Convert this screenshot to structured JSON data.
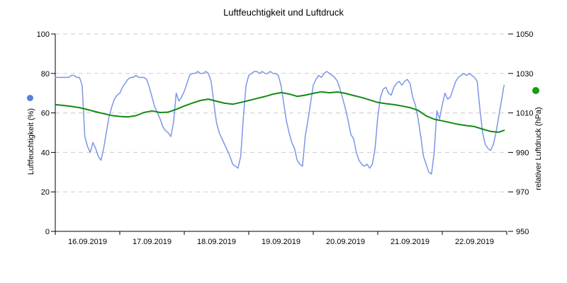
{
  "title": "Luftfeuchtigkeit und Luftdruck",
  "colors": {
    "humidity_line": "#7b96e8",
    "humidity_marker": "#5b7de1",
    "pressure_line": "#128a12",
    "pressure_marker": "#12a012",
    "grid": "#cccccc",
    "axis": "#000000",
    "background": "#ffffff"
  },
  "chart_data": {
    "type": "line",
    "title": "Luftfeuchtigkeit und Luftdruck",
    "grid": "horizontal-dashed",
    "legend": "colored dots next to each axis title",
    "x_axis": {
      "tick_labels": [
        "16.09.2019",
        "17.09.2019",
        "18.09.2019",
        "19.09.2019",
        "20.09.2019",
        "21.09.2019",
        "22.09.2019"
      ],
      "start": "16.09.2019 00:00",
      "days_shown": 7,
      "data_end_hour": 167
    },
    "y_left": {
      "label": "Luftfeuchtigkeit (%)",
      "min": 0,
      "max": 100,
      "ticks": [
        0,
        20,
        40,
        60,
        80,
        100
      ]
    },
    "y_right": {
      "label": "relativer Luftdruck (hPa)",
      "min": 950,
      "max": 1050,
      "ticks": [
        950,
        970,
        990,
        1010,
        1030,
        1050
      ]
    },
    "series": [
      {
        "name": "Luftfeuchtigkeit",
        "unit": "%",
        "axis": "left",
        "color": "#7b96e8",
        "step_hours": 1,
        "values": [
          78,
          78,
          78,
          78,
          78,
          78,
          79,
          79,
          78,
          78,
          74,
          48,
          43,
          40,
          45,
          42,
          38,
          36,
          42,
          50,
          58,
          63,
          67,
          69,
          70,
          73,
          75,
          77,
          78,
          78,
          79,
          78,
          78,
          78,
          77,
          73,
          68,
          63,
          60,
          57,
          53,
          51,
          50,
          48,
          55,
          70,
          66,
          68,
          71,
          75,
          79,
          80,
          80,
          81,
          80,
          80,
          81,
          80,
          76,
          65,
          55,
          50,
          47,
          44,
          41,
          38,
          34,
          33,
          32,
          38,
          58,
          74,
          79,
          80,
          81,
          81,
          80,
          81,
          80,
          80,
          81,
          80,
          80,
          79,
          74,
          65,
          56,
          50,
          45,
          42,
          36,
          34,
          33,
          48,
          56,
          65,
          74,
          77,
          79,
          78,
          80,
          81,
          80,
          79,
          78,
          76,
          72,
          67,
          62,
          56,
          49,
          47,
          40,
          36,
          34,
          33,
          34,
          32,
          34,
          42,
          58,
          68,
          72,
          73,
          70,
          69,
          73,
          75,
          76,
          74,
          76,
          77,
          75,
          68,
          64,
          57,
          48,
          38,
          34,
          30,
          29,
          40,
          61,
          57,
          64,
          70,
          67,
          68,
          72,
          76,
          78,
          79,
          80,
          79,
          80,
          79,
          78,
          76,
          62,
          50,
          44,
          42,
          41,
          44,
          50,
          58,
          66,
          74
        ]
      },
      {
        "name": "relativer Luftdruck",
        "unit": "hPa",
        "axis": "right",
        "color": "#128a12",
        "step_hours": 3,
        "values": [
          1014.2,
          1013.8,
          1013.3,
          1012.7,
          1011.7,
          1010.6,
          1009.6,
          1008.7,
          1008.2,
          1008.0,
          1008.6,
          1010.2,
          1011.0,
          1010.2,
          1010.4,
          1011.8,
          1013.5,
          1015.0,
          1016.3,
          1017.0,
          1015.9,
          1014.9,
          1014.4,
          1015.3,
          1016.3,
          1017.3,
          1018.3,
          1019.5,
          1020.3,
          1019.6,
          1018.4,
          1019.0,
          1019.9,
          1020.7,
          1020.2,
          1020.6,
          1019.9,
          1018.8,
          1017.8,
          1016.6,
          1015.3,
          1014.7,
          1014.2,
          1013.5,
          1012.7,
          1011.3,
          1008.5,
          1006.8,
          1006.0,
          1005.1,
          1004.2,
          1003.6,
          1003.1,
          1001.8,
          1000.6,
          1000.2,
          1001.2
        ]
      }
    ]
  }
}
